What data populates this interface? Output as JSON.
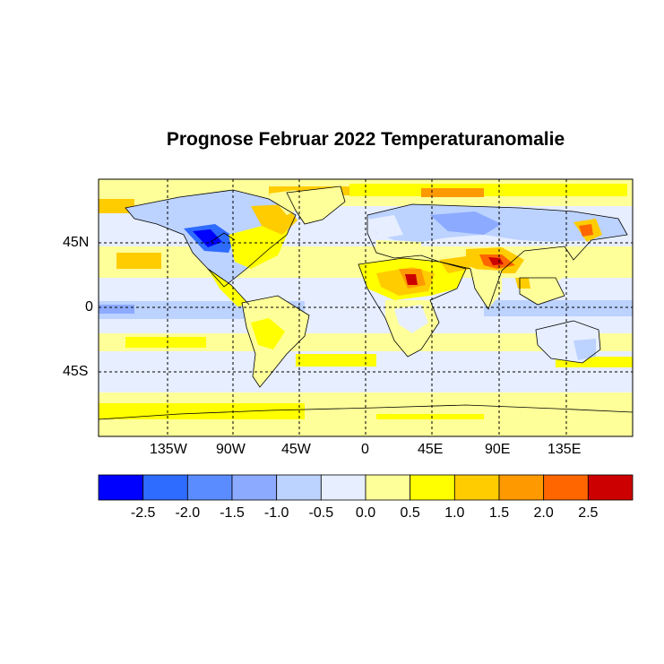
{
  "title": "Prognose Februar 2022 Temperaturanomalie",
  "map": {
    "lon_ticks": [
      "135W",
      "90W",
      "45W",
      "0",
      "45E",
      "90E",
      "135E"
    ],
    "lat_ticks": [
      "45N",
      "0",
      "45S"
    ]
  },
  "colorbar": {
    "colors": [
      "#0000ff",
      "#2e6bff",
      "#5a8cff",
      "#8caaff",
      "#bcd2ff",
      "#e6eeff",
      "#ffff99",
      "#ffff00",
      "#ffcc00",
      "#ff9900",
      "#ff6600",
      "#cc0000"
    ],
    "labels": [
      "-2.5",
      "-2.0",
      "-1.5",
      "-1.0",
      "-0.5",
      "0.0",
      "0.5",
      "1.0",
      "1.5",
      "2.0",
      "2.5"
    ]
  },
  "colors": {
    "neutral": "#ffffff",
    "grid_line": "#000000"
  }
}
